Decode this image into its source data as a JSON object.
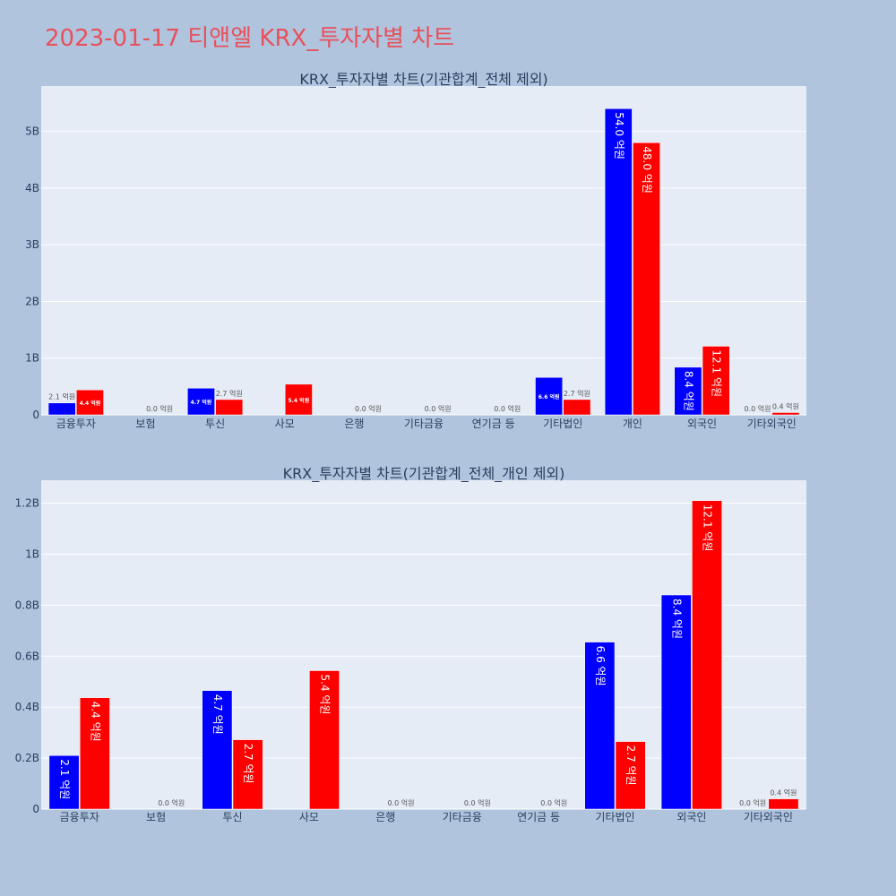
{
  "title": "2023-01-17 티앤엘 KRX_투자자별 차트",
  "colors": {
    "buy": "#0000ff",
    "sell": "#ff0000",
    "plot_bg": "#e5ecf6",
    "page_bg": "#b0c4de"
  },
  "chart_data": [
    {
      "type": "bar",
      "title": "KRX_투자자별 차트(기관합계_전체 제외)",
      "categories": [
        "금융투자",
        "보험",
        "투신",
        "사모",
        "은행",
        "기타금융",
        "연기금 등",
        "기타법인",
        "개인",
        "외국인",
        "기타외국인"
      ],
      "ylim": [
        0,
        5800000000
      ],
      "yticks": [
        0,
        1000000000,
        2000000000,
        3000000000,
        4000000000,
        5000000000
      ],
      "ytick_labels": [
        "0",
        "1B",
        "2B",
        "3B",
        "4B",
        "5B"
      ],
      "grid": true,
      "series": [
        {
          "color": "#0000ff",
          "values": [
            210000000,
            0,
            470000000,
            0,
            0,
            0,
            0,
            660000000,
            5400000000,
            840000000,
            0
          ],
          "labels": [
            "2.1 억원",
            "",
            "4.7 억원",
            "",
            "",
            "",
            "",
            "6.6 억원",
            "54.0 억원",
            "8.4 억원",
            "0.0 억원"
          ]
        },
        {
          "color": "#ff0000",
          "values": [
            440000000,
            0,
            270000000,
            540000000,
            0,
            0,
            0,
            270000000,
            4800000000,
            1210000000,
            40000000
          ],
          "labels": [
            "4.4 억원",
            "0.0 억원",
            "2.7 억원",
            "5.4 억원",
            "0.0 억원",
            "0.0 억원",
            "0.0 억원",
            "2.7 억원",
            "48.0 억원",
            "12.1 억원",
            "0.4 억원"
          ]
        }
      ]
    },
    {
      "type": "bar",
      "title": "KRX_투자자별 차트(기관합계_전체_개인 제외)",
      "categories": [
        "금융투자",
        "보험",
        "투신",
        "사모",
        "은행",
        "기타금융",
        "연기금 등",
        "기타법인",
        "외국인",
        "기타외국인"
      ],
      "ylim": [
        0,
        1290000000
      ],
      "yticks": [
        0,
        200000000,
        400000000,
        600000000,
        800000000,
        1000000000,
        1200000000
      ],
      "ytick_labels": [
        "0",
        "0.2B",
        "0.4B",
        "0.6B",
        "0.8B",
        "1B",
        "1.2B"
      ],
      "grid": true,
      "series": [
        {
          "color": "#0000ff",
          "values": [
            210000000,
            0,
            465000000,
            0,
            0,
            0,
            0,
            655000000,
            840000000,
            0
          ],
          "labels": [
            "2.1 억원",
            "",
            "4.7 억원",
            "",
            "",
            "",
            "",
            "6.6 억원",
            "8.4 억원",
            "0.0 억원"
          ]
        },
        {
          "color": "#ff0000",
          "values": [
            437000000,
            0,
            272000000,
            543000000,
            0,
            0,
            0,
            265000000,
            1210000000,
            40000000
          ],
          "labels": [
            "4.4 억원",
            "0.0 억원",
            "2.7 억원",
            "5.4 억원",
            "0.0 억원",
            "0.0 억원",
            "0.0 억원",
            "2.7 억원",
            "12.1 억원",
            "0.4 억원"
          ]
        }
      ]
    }
  ]
}
